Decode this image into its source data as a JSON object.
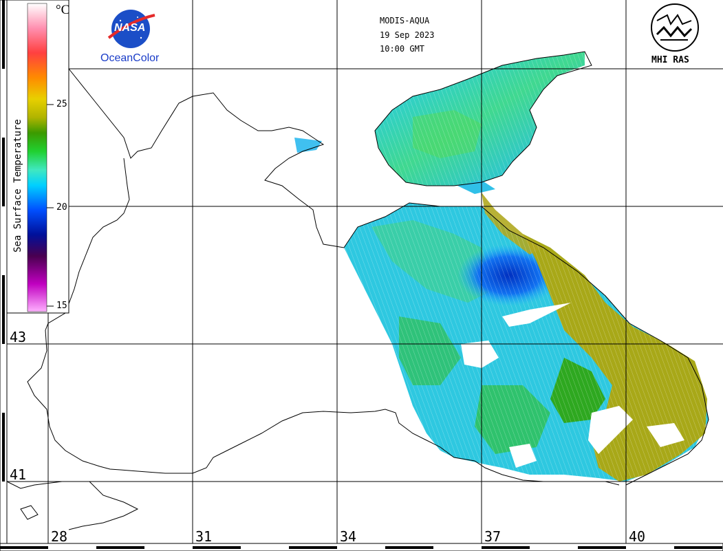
{
  "header": {
    "satellite": "MODIS-AQUA",
    "date": "19 Sep 2023",
    "time": "10:00 GMT"
  },
  "logos": {
    "nasa_text": "NASA",
    "oceancolor_label": "OceanColor",
    "mhi_label": "MHI RAS"
  },
  "colorbar": {
    "title": "Sea Surface Temperature",
    "unit": "°C",
    "ticks": [
      "25",
      "20",
      "15"
    ],
    "colors": [
      "#ffffff",
      "#ff8fb0",
      "#ff4040",
      "#ff8a00",
      "#e8d000",
      "#c8c000",
      "#3c9a00",
      "#20d030",
      "#40e8c0",
      "#00d0ff",
      "#0050ff",
      "#00109a",
      "#4a0050",
      "#c000c0",
      "#ffa0ff"
    ]
  },
  "grid": {
    "latitudes": [
      "43",
      "41"
    ],
    "longitudes": [
      "28",
      "31",
      "34",
      "37",
      "40"
    ]
  }
}
